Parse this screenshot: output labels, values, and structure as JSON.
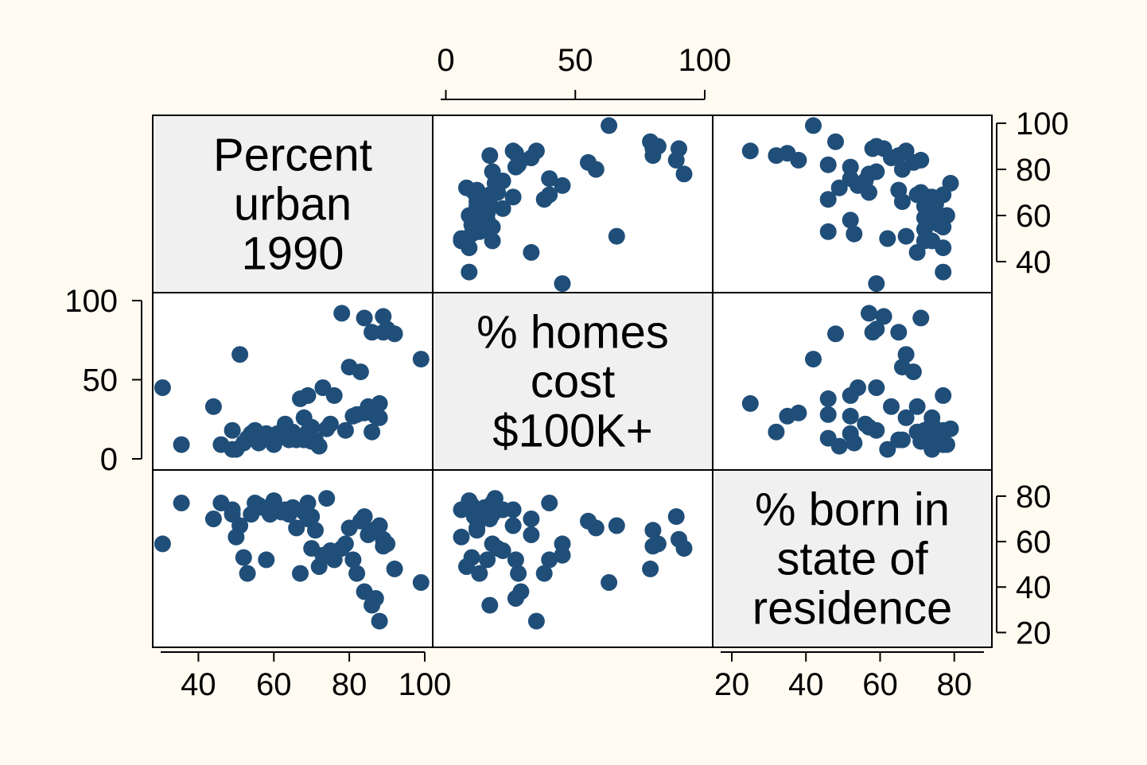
{
  "chart_data": {
    "type": "scatter-matrix",
    "background_color": "#fffbf0",
    "marker_color": "#1f4e79",
    "grid": false,
    "variables": [
      {
        "label_lines": [
          "Percent",
          "urban",
          "1990"
        ],
        "ticks": [
          40,
          60,
          80,
          100
        ],
        "range": [
          30,
          100
        ]
      },
      {
        "label_lines": [
          "% homes",
          "cost",
          "$100K+"
        ],
        "ticks": [
          0,
          50,
          100
        ],
        "range": [
          -2,
          100
        ]
      },
      {
        "label_lines": [
          "% born in",
          "state of",
          "residence"
        ],
        "ticks": [
          20,
          40,
          60,
          80
        ],
        "range": [
          17,
          88
        ]
      }
    ],
    "observations": [
      [
        35.5,
        9,
        77
      ],
      [
        30.5,
        45,
        59
      ],
      [
        44,
        33,
        70
      ],
      [
        46,
        9,
        77
      ],
      [
        49,
        6,
        74
      ],
      [
        49,
        18,
        72
      ],
      [
        50,
        6,
        62
      ],
      [
        51,
        66,
        67
      ],
      [
        52,
        10,
        53
      ],
      [
        53,
        13,
        46
      ],
      [
        54,
        16,
        72
      ],
      [
        55,
        18,
        77
      ],
      [
        56,
        10,
        76
      ],
      [
        57,
        15,
        75
      ],
      [
        58,
        16,
        52
      ],
      [
        59,
        13,
        72
      ],
      [
        60,
        9,
        78
      ],
      [
        61,
        16,
        74
      ],
      [
        62,
        14,
        73
      ],
      [
        63,
        22,
        74
      ],
      [
        64,
        12,
        72
      ],
      [
        65,
        17,
        75
      ],
      [
        66,
        12,
        66
      ],
      [
        67,
        38,
        46
      ],
      [
        68,
        12,
        73
      ],
      [
        68,
        26,
        74
      ],
      [
        69,
        40,
        77
      ],
      [
        69,
        17,
        70
      ],
      [
        70,
        11,
        71
      ],
      [
        70,
        20,
        57
      ],
      [
        71,
        12,
        65
      ],
      [
        72,
        8,
        49
      ],
      [
        73,
        45,
        54
      ],
      [
        74,
        19,
        79
      ],
      [
        75,
        22,
        56
      ],
      [
        76,
        40,
        52
      ],
      [
        78,
        92,
        57
      ],
      [
        79,
        18,
        59
      ],
      [
        80,
        58,
        66
      ],
      [
        81,
        27,
        52
      ],
      [
        82,
        28,
        46
      ],
      [
        83,
        55,
        69
      ],
      [
        84,
        89,
        71
      ],
      [
        84,
        29,
        38
      ],
      [
        85,
        33,
        63
      ],
      [
        86,
        80,
        65
      ],
      [
        86,
        17,
        32
      ],
      [
        87,
        27,
        35
      ],
      [
        88,
        26,
        67
      ],
      [
        88,
        35,
        25
      ],
      [
        89,
        90,
        61
      ],
      [
        89,
        80,
        58
      ],
      [
        90,
        82,
        59
      ],
      [
        92,
        79,
        48
      ],
      [
        99,
        63,
        42
      ]
    ]
  }
}
